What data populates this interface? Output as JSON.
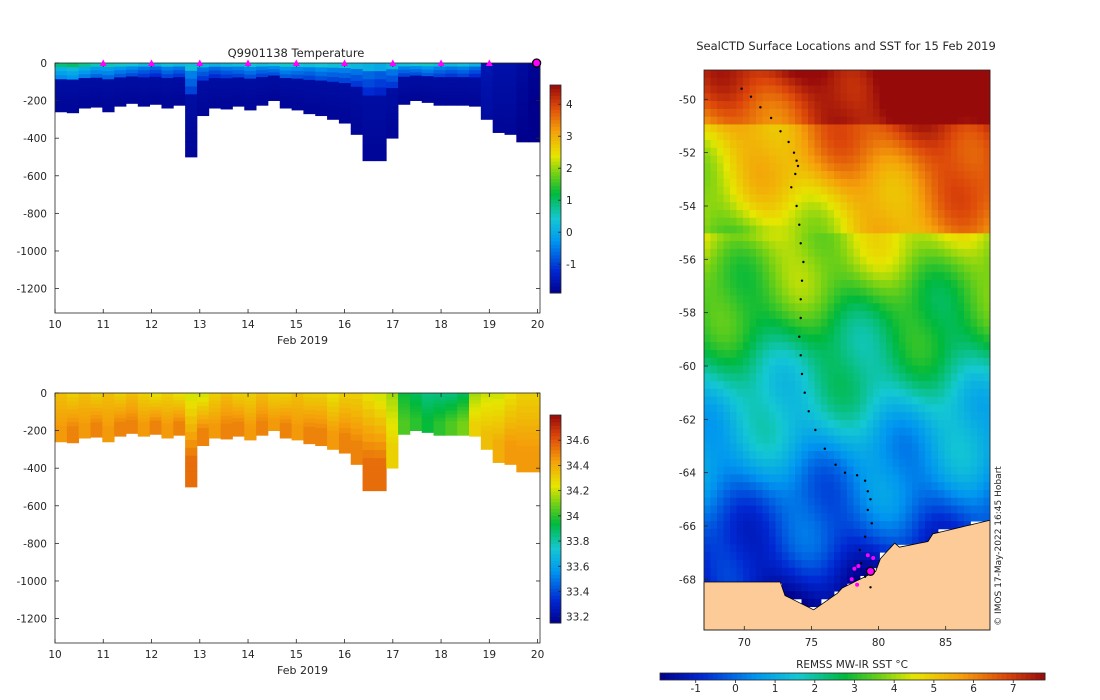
{
  "chart_data": [
    {
      "id": "temp",
      "type": "heatmap",
      "title": "Q9901138  Temperature",
      "xlabel": "Feb 2019",
      "x_ticks": [
        10,
        11,
        12,
        13,
        14,
        15,
        16,
        17,
        18,
        19,
        20
      ],
      "y_ticks": [
        0,
        -200,
        -400,
        -600,
        -800,
        -1000,
        -1200
      ],
      "xlim": [
        10,
        20.05
      ],
      "ylim": [
        -1330,
        0
      ],
      "colorbar": {
        "min": -1.9,
        "max": 4.6,
        "ticks": [
          -1,
          0,
          1,
          2,
          3,
          4
        ]
      },
      "profile_depths": [
        260,
        265,
        240,
        235,
        260,
        230,
        215,
        230,
        220,
        240,
        225,
        500,
        280,
        240,
        245,
        230,
        250,
        225,
        200,
        240,
        250,
        270,
        280,
        300,
        320,
        380,
        520,
        520,
        400,
        220,
        200,
        210,
        225,
        225,
        225,
        230,
        300,
        370,
        380,
        420,
        420
      ],
      "surface_values": [
        0.9,
        1.0,
        0.8,
        0.6,
        0.6,
        0.5,
        0.4,
        0.2,
        0.1,
        0.3,
        0.2,
        0.3,
        0.2,
        0.1,
        0.2,
        0.3,
        0.4,
        0.3,
        0.4,
        0.5,
        0.4,
        0.3,
        0.4,
        0.3,
        0.3,
        0.2,
        0.1,
        0.0,
        0.2,
        0.3,
        0.4,
        0.5,
        0.3,
        0.2,
        0.3,
        0.1,
        -1.5,
        -1.6,
        -1.6,
        -1.7,
        -1.8
      ],
      "marker_days": [
        11,
        12,
        13,
        14,
        15,
        16,
        17,
        18,
        19
      ]
    },
    {
      "id": "sal",
      "type": "heatmap",
      "xlabel": "Feb 2019",
      "x_ticks": [
        10,
        11,
        12,
        13,
        14,
        15,
        16,
        17,
        18,
        19,
        20
      ],
      "y_ticks": [
        0,
        -200,
        -400,
        -600,
        -800,
        -1000,
        -1200
      ],
      "xlim": [
        10,
        20.05
      ],
      "ylim": [
        -1330,
        0
      ],
      "colorbar": {
        "min": 33.15,
        "max": 34.8,
        "ticks": [
          33.2,
          33.4,
          33.6,
          33.8,
          34,
          34.2,
          34.4,
          34.6
        ]
      },
      "profile_depths": [
        260,
        265,
        240,
        235,
        260,
        230,
        215,
        230,
        220,
        240,
        225,
        500,
        280,
        240,
        245,
        230,
        250,
        225,
        200,
        240,
        250,
        270,
        280,
        300,
        320,
        380,
        520,
        520,
        400,
        220,
        200,
        210,
        225,
        225,
        225,
        230,
        300,
        370,
        380,
        420,
        420
      ],
      "surface_values": [
        34.35,
        34.3,
        34.35,
        34.3,
        34.35,
        34.3,
        34.35,
        34.3,
        34.25,
        34.3,
        34.25,
        34.2,
        34.2,
        34.3,
        34.35,
        34.3,
        34.3,
        34.35,
        34.3,
        34.3,
        34.35,
        34.3,
        34.3,
        34.25,
        34.3,
        34.3,
        34.25,
        34.2,
        34.15,
        33.95,
        33.9,
        33.85,
        33.85,
        33.85,
        33.9,
        34.15,
        34.2,
        34.2,
        34.25,
        34.3,
        34.3
      ],
      "deep_values": [
        34.45,
        34.5,
        34.45,
        34.5,
        34.45,
        34.5,
        34.5,
        34.45,
        34.5,
        34.45,
        34.5,
        34.55,
        34.5,
        34.45,
        34.5,
        34.5,
        34.45,
        34.5,
        34.45,
        34.5,
        34.45,
        34.5,
        34.5,
        34.45,
        34.5,
        34.5,
        34.55,
        34.55,
        34.3,
        34.05,
        34.0,
        33.95,
        34.0,
        34.05,
        34.1,
        34.3,
        34.35,
        34.4,
        34.45,
        34.45,
        34.45
      ]
    },
    {
      "id": "map",
      "type": "heatmap",
      "title": "SealCTD Surface Locations and SST for 15 Feb 2019",
      "colorbar_label": "REMSS MW-IR SST °C",
      "credit": "© IMOS 17-May-2022 16:45 Hobart",
      "lon_range": [
        67,
        88.3
      ],
      "lat_range": [
        -69.9,
        -48.9
      ],
      "lon_ticks": [
        70,
        75,
        80,
        85
      ],
      "lat_ticks": [
        -50,
        -52,
        -54,
        -56,
        -58,
        -60,
        -62,
        -64,
        -66,
        -68
      ],
      "colorbar": {
        "min": -1.9,
        "max": 7.8,
        "ticks": [
          -1,
          0,
          1,
          2,
          3,
          4,
          5,
          6,
          7
        ]
      },
      "track_lon": [
        69.8,
        70.5,
        71.2,
        72.0,
        72.7,
        73.3,
        73.7,
        73.9,
        74.0,
        73.8,
        73.5,
        73.9,
        74.1,
        74.2,
        74.4,
        74.3,
        74.2,
        74.2,
        74.1,
        74.2,
        74.3,
        74.5,
        74.8,
        75.3,
        76.0,
        76.8,
        77.5,
        78.4,
        79.0,
        79.2,
        79.4,
        79.2,
        79.5,
        79.0,
        78.6,
        78.7,
        79.0,
        79.4
      ],
      "track_lat": [
        -49.6,
        -49.9,
        -50.3,
        -50.7,
        -51.2,
        -51.6,
        -52.0,
        -52.3,
        -52.5,
        -52.8,
        -53.3,
        -54.0,
        -54.7,
        -55.4,
        -56.1,
        -56.8,
        -57.5,
        -58.2,
        -58.9,
        -59.6,
        -60.3,
        -61.0,
        -61.7,
        -62.4,
        -63.1,
        -63.7,
        -64.0,
        -64.1,
        -64.3,
        -64.7,
        -65.0,
        -65.4,
        -65.9,
        -66.4,
        -66.9,
        -67.4,
        -67.9,
        -68.3
      ],
      "ctd_lon": [
        78.5,
        78.2,
        78.0,
        78.4,
        79.2,
        79.6
      ],
      "ctd_lat": [
        -67.5,
        -67.6,
        -68.0,
        -68.2,
        -67.1,
        -67.2
      ],
      "highlight": {
        "lon": 79.4,
        "lat": -67.7
      }
    }
  ]
}
